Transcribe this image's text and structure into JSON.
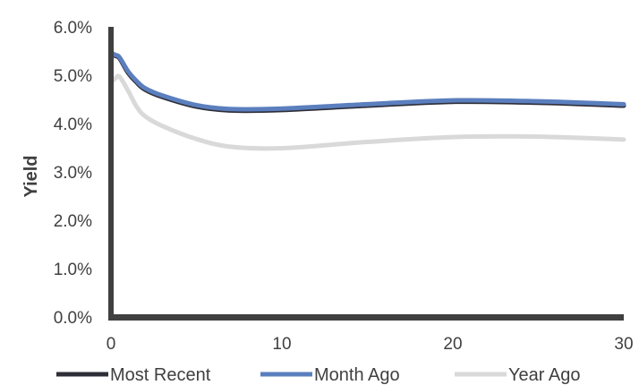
{
  "chart_data": {
    "type": "line",
    "title": "",
    "xlabel": "",
    "ylabel": "Yield",
    "xlim": [
      0,
      30
    ],
    "ylim": [
      0,
      0.06
    ],
    "x_ticks": [
      0,
      10,
      20,
      30
    ],
    "x_tick_labels": [
      "0",
      "10",
      "20",
      "30"
    ],
    "y_ticks": [
      0,
      0.01,
      0.02,
      0.03,
      0.04,
      0.05,
      0.06
    ],
    "y_tick_labels": [
      "0.0%",
      "1.0%",
      "2.0%",
      "3.0%",
      "4.0%",
      "5.0%",
      "6.0%"
    ],
    "grid": false,
    "legend_position": "bottom",
    "series": [
      {
        "name": "Most Recent",
        "color": "#2e2e38",
        "points": [
          [
            0.083,
            0.0545
          ],
          [
            0.25,
            0.054
          ],
          [
            0.5,
            0.0535
          ],
          [
            1,
            0.0505
          ],
          [
            1.5,
            0.0485
          ],
          [
            2,
            0.047
          ],
          [
            3,
            0.0455
          ],
          [
            5,
            0.0435
          ],
          [
            7,
            0.0427
          ],
          [
            10,
            0.0428
          ],
          [
            15,
            0.0437
          ],
          [
            20,
            0.0445
          ],
          [
            25,
            0.0443
          ],
          [
            30,
            0.0437
          ]
        ]
      },
      {
        "name": "Month Ago",
        "color": "#5b7fbe",
        "points": [
          [
            0.083,
            0.0545
          ],
          [
            0.25,
            0.0542
          ],
          [
            0.5,
            0.0537
          ],
          [
            1,
            0.0508
          ],
          [
            1.5,
            0.0488
          ],
          [
            2,
            0.0473
          ],
          [
            3,
            0.0458
          ],
          [
            5,
            0.0438
          ],
          [
            7,
            0.043
          ],
          [
            10,
            0.0431
          ],
          [
            15,
            0.044
          ],
          [
            20,
            0.0448
          ],
          [
            25,
            0.0446
          ],
          [
            30,
            0.044
          ]
        ]
      },
      {
        "name": "Year Ago",
        "color": "#d9d9d9",
        "points": [
          [
            0.083,
            0.0488
          ],
          [
            0.25,
            0.0493
          ],
          [
            0.5,
            0.0497
          ],
          [
            1,
            0.0468
          ],
          [
            1.5,
            0.0435
          ],
          [
            2,
            0.0415
          ],
          [
            3,
            0.0395
          ],
          [
            5,
            0.0368
          ],
          [
            7,
            0.0352
          ],
          [
            10,
            0.0349
          ],
          [
            15,
            0.0362
          ],
          [
            20,
            0.0372
          ],
          [
            25,
            0.0373
          ],
          [
            30,
            0.0367
          ]
        ]
      }
    ]
  }
}
